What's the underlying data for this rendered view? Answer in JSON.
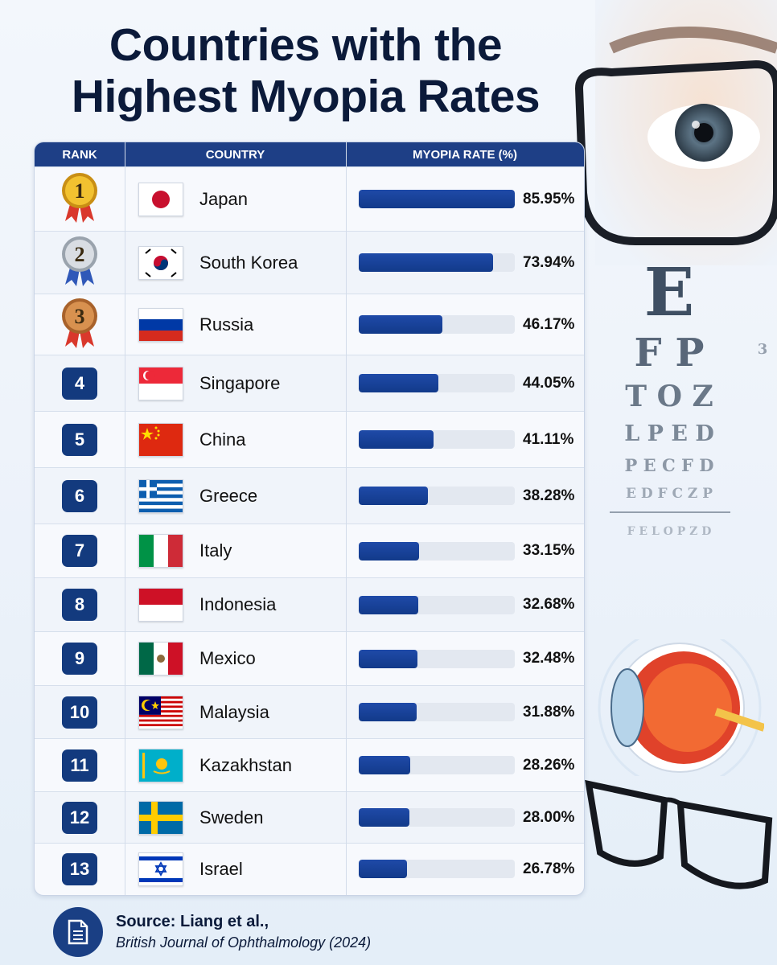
{
  "title_line1": "Countries with the",
  "title_line2": "Highest Myopia Rates",
  "table": {
    "headers": {
      "rank": "RANK",
      "country": "COUNTRY",
      "rate": "MYOPIA RATE (%)"
    }
  },
  "chart_data": {
    "type": "bar",
    "title": "Countries with the Highest Myopia Rates",
    "ylabel": "MYOPIA RATE (%)",
    "categories": [
      "Japan",
      "South Korea",
      "Russia",
      "Singapore",
      "China",
      "Greece",
      "Italy",
      "Indonesia",
      "Mexico",
      "Malaysia",
      "Kazakhstan",
      "Sweden",
      "Israel"
    ],
    "values": [
      85.95,
      73.94,
      46.17,
      44.05,
      41.11,
      38.28,
      33.15,
      32.68,
      32.48,
      31.88,
      28.26,
      28.0,
      26.78
    ],
    "labels": [
      "85.95%",
      "73.94%",
      "46.17%",
      "44.05%",
      "41.11%",
      "38.28%",
      "33.15%",
      "32.68%",
      "32.48%",
      "31.88%",
      "28.26%",
      "28.00%",
      "26.78%"
    ],
    "ranks": [
      "1",
      "2",
      "3",
      "4",
      "5",
      "6",
      "7",
      "8",
      "9",
      "10",
      "11",
      "12",
      "13"
    ],
    "ylim": [
      0,
      85.95
    ]
  },
  "flags": [
    "japan",
    "south-korea",
    "russia",
    "singapore",
    "china",
    "greece",
    "italy",
    "indonesia",
    "mexico",
    "malaysia",
    "kazakhstan",
    "sweden",
    "israel"
  ],
  "medals": [
    "gold",
    "silver",
    "bronze"
  ],
  "colors": {
    "header": "#1e3f86",
    "bar": "#1a4399",
    "rank_box": "#133a7e",
    "title": "#0b1a3a"
  },
  "icons": [
    "document-icon",
    "gold-medal-icon",
    "silver-medal-icon",
    "bronze-medal-icon"
  ],
  "source": {
    "line1": "Source: Liang et al.,",
    "line2": "British Journal of Ophthalmology (2024)"
  },
  "eye_chart": {
    "row1": "E",
    "row2": "F P",
    "row3": "T O Z",
    "row4": "L P E D",
    "row5": "P E C F D",
    "row6": "E D F C Z P",
    "row7": "F E L O P Z D",
    "side_digit": "3"
  }
}
